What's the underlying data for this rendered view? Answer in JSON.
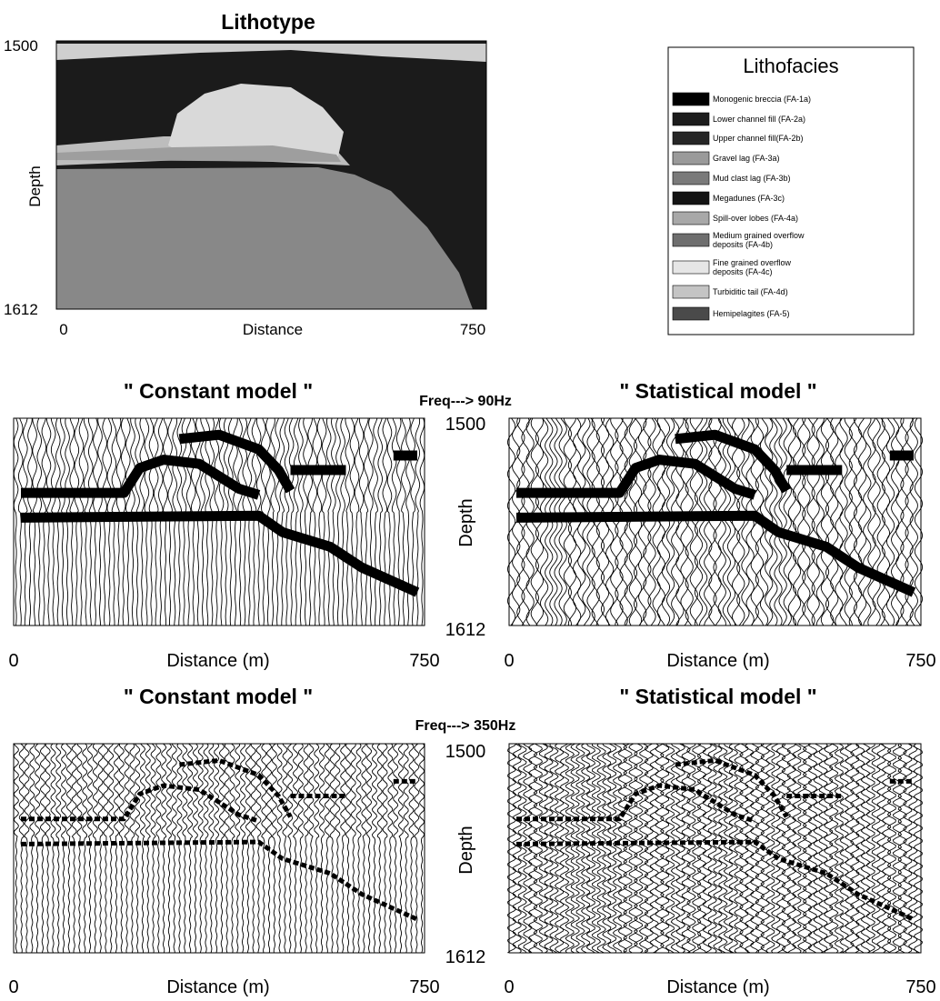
{
  "lithotype": {
    "title": "Lithotype",
    "y_axis_label": "Depth",
    "y_top": "1500",
    "y_bottom": "1612",
    "x_axis_label": "Distance",
    "x_left": "0",
    "x_right": "750"
  },
  "legend": {
    "title": "Lithofacies",
    "items": [
      {
        "lines": [
          "Monogenic breccia (FA-1a)"
        ],
        "color": "#000000"
      },
      {
        "lines": [
          "Lower channel fill (FA-2a)"
        ],
        "color": "#1c1c1c"
      },
      {
        "lines": [
          " Upper channel fill(FA-2b)"
        ],
        "color": "#262626"
      },
      {
        "lines": [
          "Gravel lag (FA-3a)"
        ],
        "color": "#9a9a9a"
      },
      {
        "lines": [
          "Mud clast lag (FA-3b)"
        ],
        "color": "#7a7a7a"
      },
      {
        "lines": [
          "Megadunes (FA-3c)"
        ],
        "color": "#141414"
      },
      {
        "lines": [
          "Spill-over lobes (FA-4a)"
        ],
        "color": "#a8a8a8"
      },
      {
        "lines": [
          "Medium grained overflow",
          "deposits (FA-4b)"
        ],
        "color": "#6e6e6e"
      },
      {
        "lines": [
          "Fine grained overflow",
          "deposits  (FA-4c)"
        ],
        "color": "#e6e6e6"
      },
      {
        "lines": [
          "Turbiditic tail (FA-4d)"
        ],
        "color": "#c4c4c4"
      },
      {
        "lines": [
          "Hemipelagites (FA-5)"
        ],
        "color": "#4a4a4a"
      }
    ]
  },
  "rows": [
    {
      "frequency": "Freq---> 90Hz",
      "depth_label": "Depth",
      "depth_top": "1500",
      "depth_bottom": "1612",
      "panels": [
        {
          "title": "\" Constant model \"",
          "x_axis_label": "Distance (m)",
          "x_left": "0",
          "x_right": "750"
        },
        {
          "title": "\" Statistical model \"",
          "x_axis_label": "Distance (m)",
          "x_left": "0",
          "x_right": "750"
        }
      ]
    },
    {
      "frequency": "Freq---> 350Hz",
      "depth_label": "Depth",
      "depth_top": "1500",
      "depth_bottom": "1612",
      "panels": [
        {
          "title": "\" Constant model \"",
          "x_axis_label": "Distance (m)",
          "x_left": "0",
          "x_right": "750"
        },
        {
          "title": "\" Statistical model \"",
          "x_axis_label": "Distance (m)",
          "x_left": "0",
          "x_right": "750"
        }
      ]
    }
  ]
}
